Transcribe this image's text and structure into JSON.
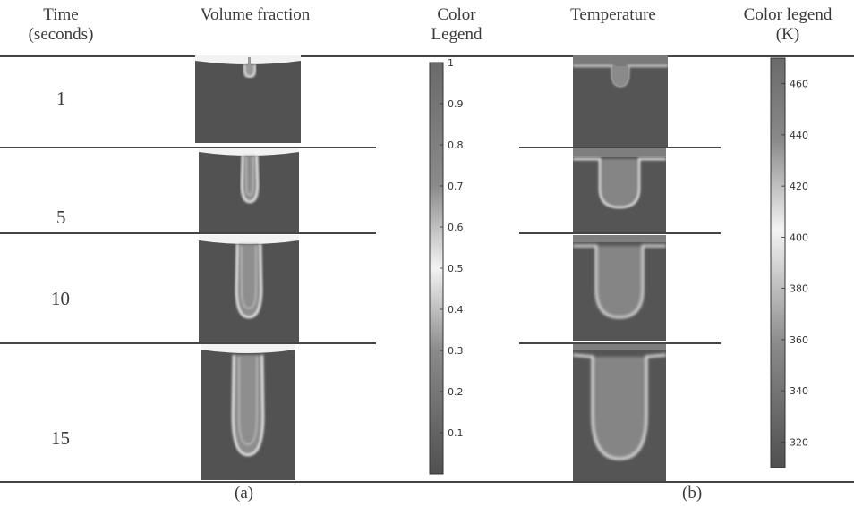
{
  "headers": {
    "time_l1": "Time",
    "time_l2": "(seconds)",
    "vf": "Volume fraction",
    "cl_l1": "Color",
    "cl_l2": "Legend",
    "temp": "Temperature",
    "tl_l1": "Color legend",
    "tl_l2": "(K)"
  },
  "rows": [
    {
      "time": "1"
    },
    {
      "time": "5"
    },
    {
      "time": "10"
    },
    {
      "time": "15"
    }
  ],
  "vf_legend": {
    "ticks": [
      "1",
      "0.9",
      "0.8",
      "0.7",
      "0.6",
      "0.5",
      "0.4",
      "0.3",
      "0.2",
      "0.1"
    ],
    "range": [
      0,
      1
    ]
  },
  "temp_legend": {
    "ticks": [
      "460",
      "440",
      "420",
      "400",
      "380",
      "360",
      "340",
      "320"
    ],
    "range": [
      310,
      470
    ]
  },
  "captions": {
    "a": "(a)",
    "b": "(b)"
  },
  "colors": {
    "dark": "#525252",
    "light": "#f2f2f2",
    "line": "#444444"
  }
}
